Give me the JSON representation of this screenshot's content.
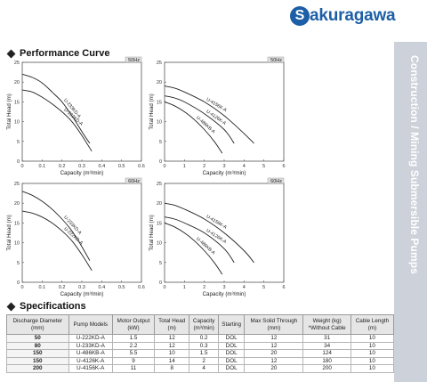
{
  "brand": {
    "logo_letter": "S",
    "logo_rest": "akuragawa",
    "color": "#1d5fa6"
  },
  "side_label": "Construction / Mining Submersible Pumps",
  "performance_title": "Performance Curve",
  "specs_title": "Specifications",
  "chart_data": [
    {
      "type": "line",
      "freq": "50Hz",
      "xlabel": "Capacity (m³/min)",
      "ylabel": "Total Head (m)",
      "xlim": [
        0,
        0.6
      ],
      "ylim": [
        0,
        25
      ],
      "xticks": [
        "0",
        "0.1",
        "0.2",
        "0.3",
        "0.4",
        "0.5",
        "0.6"
      ],
      "yticks": [
        "25",
        "20",
        "15",
        "10",
        "5",
        "0"
      ],
      "series": [
        {
          "name": "U-233KD-A",
          "x": [
            0,
            0.05,
            0.1,
            0.15,
            0.2,
            0.25,
            0.3,
            0.34
          ],
          "y": [
            22,
            21.2,
            19.8,
            17.5,
            15,
            11.5,
            7.5,
            4.5
          ]
        },
        {
          "name": "U-222KD-A",
          "x": [
            0,
            0.05,
            0.1,
            0.15,
            0.2,
            0.25,
            0.3,
            0.35
          ],
          "y": [
            18,
            17.5,
            16.2,
            14.5,
            12.5,
            10,
            6.5,
            2.5
          ]
        }
      ]
    },
    {
      "type": "line",
      "freq": "50Hz",
      "xlabel": "Capacity (m³/min)",
      "ylabel": "Total Head (m)",
      "xlim": [
        0,
        6
      ],
      "ylim": [
        0,
        25
      ],
      "xticks": [
        "0",
        "1",
        "2",
        "3",
        "4",
        "5",
        "6"
      ],
      "yticks": [
        "25",
        "20",
        "15",
        "10",
        "5",
        "0"
      ],
      "series": [
        {
          "name": "U-4156K-A",
          "x": [
            0,
            0.5,
            1,
            2,
            3,
            4,
            4.5
          ],
          "y": [
            19,
            18.5,
            17.5,
            15,
            11.5,
            7,
            4.5
          ]
        },
        {
          "name": "U-4126K-A",
          "x": [
            0,
            0.5,
            1,
            2,
            3,
            3.5
          ],
          "y": [
            16.5,
            16,
            15,
            12,
            8,
            4.5
          ]
        },
        {
          "name": "U-486KB-A",
          "x": [
            0,
            0.5,
            1,
            1.5,
            2,
            2.5,
            2.9
          ],
          "y": [
            15,
            14,
            12.5,
            10.5,
            8,
            5,
            2
          ]
        }
      ]
    },
    {
      "type": "line",
      "freq": "60Hz",
      "xlabel": "Capacity (m³/min)",
      "ylabel": "Total Head (m)",
      "xlim": [
        0,
        0.6
      ],
      "ylim": [
        0,
        25
      ],
      "xticks": [
        "0",
        "0.1",
        "0.2",
        "0.3",
        "0.4",
        "0.5",
        "0.6"
      ],
      "yticks": [
        "25",
        "20",
        "15",
        "10",
        "5",
        "0"
      ],
      "series": [
        {
          "name": "U-233KD-A",
          "x": [
            0,
            0.05,
            0.1,
            0.15,
            0.2,
            0.25,
            0.3,
            0.34
          ],
          "y": [
            23,
            22,
            20.5,
            18.5,
            16,
            13,
            9,
            5.5
          ]
        },
        {
          "name": "U-222KD-A",
          "x": [
            0,
            0.05,
            0.1,
            0.15,
            0.2,
            0.25,
            0.3,
            0.35
          ],
          "y": [
            18,
            17.5,
            16.5,
            15,
            13,
            10.5,
            7,
            3
          ]
        }
      ]
    },
    {
      "type": "line",
      "freq": "60Hz",
      "xlabel": "Capacity (m³/min)",
      "ylabel": "Total Head (m)",
      "xlim": [
        0,
        6
      ],
      "ylim": [
        0,
        25
      ],
      "xticks": [
        "0",
        "1",
        "2",
        "3",
        "4",
        "5",
        "6"
      ],
      "yticks": [
        "25",
        "20",
        "15",
        "10",
        "5",
        "0"
      ],
      "series": [
        {
          "name": "U-4156K-A",
          "x": [
            0,
            0.5,
            1,
            2,
            3,
            4,
            4.5
          ],
          "y": [
            20,
            19.5,
            18.5,
            16,
            12.5,
            8,
            5
          ]
        },
        {
          "name": "U-4126K-A",
          "x": [
            0,
            0.5,
            1,
            2,
            3,
            3.5
          ],
          "y": [
            16.5,
            16,
            15,
            12.5,
            8.5,
            5
          ]
        },
        {
          "name": "U-486KB-A",
          "x": [
            0,
            0.5,
            1,
            1.5,
            2,
            2.5,
            2.9
          ],
          "y": [
            15,
            14,
            12.5,
            10.5,
            8,
            5,
            2
          ]
        }
      ]
    }
  ],
  "specs": {
    "headers": [
      [
        "Discharge Diameter",
        "(mm)"
      ],
      [
        "Pump Models"
      ],
      [
        "Motor Output",
        "(kW)"
      ],
      [
        "Total Head",
        "(m)"
      ],
      [
        "Capacity",
        "(m³/min)"
      ],
      [
        "Starting"
      ],
      [
        "Max Solid Through",
        "(mm)"
      ],
      [
        "Weight  (kg)",
        "*Without Cable"
      ],
      [
        "Cable Length",
        "(m)"
      ]
    ],
    "rows": [
      [
        "50",
        "U-222KD-A",
        "1.5",
        "12",
        "0.2",
        "DOL",
        "12",
        "31",
        "10"
      ],
      [
        "80",
        "U-233KD-A",
        "2.2",
        "12",
        "0.3",
        "DOL",
        "12",
        "34",
        "10"
      ],
      [
        "150",
        "U-486KB-A",
        "5.5",
        "10",
        "1.5",
        "DOL",
        "20",
        "124",
        "10"
      ],
      [
        "150",
        "U-4126K-A",
        "9",
        "14",
        "2",
        "DOL",
        "12",
        "180",
        "10"
      ],
      [
        "200",
        "U-4156K-A",
        "11",
        "8",
        "4",
        "DOL",
        "20",
        "200",
        "10"
      ]
    ]
  }
}
